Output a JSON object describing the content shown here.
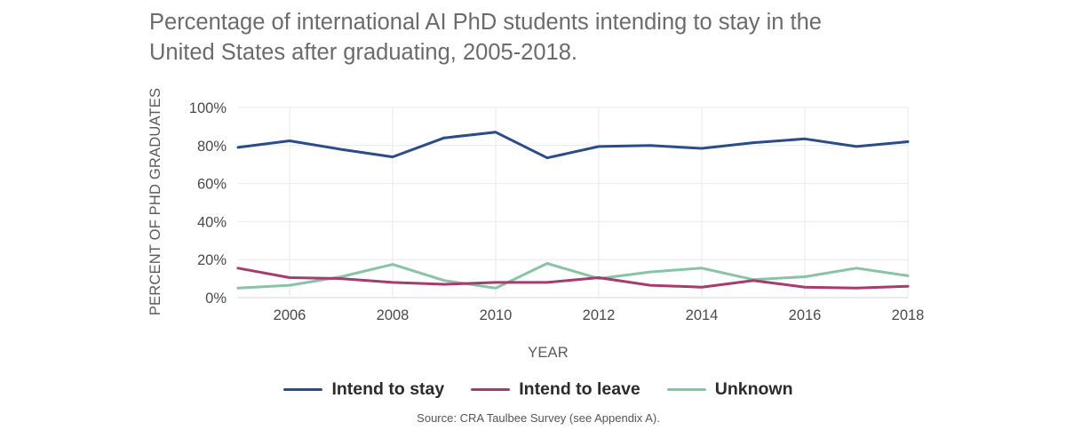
{
  "chart_data": {
    "type": "line",
    "title_lines": [
      "Percentage of international AI PhD students intending to stay in the",
      "United States after graduating, 2005-2018."
    ],
    "xlabel": "YEAR",
    "ylabel": "PERCENT OF PHD GRADUATES",
    "x": [
      2005,
      2006,
      2007,
      2008,
      2009,
      2010,
      2011,
      2012,
      2013,
      2014,
      2015,
      2016,
      2017,
      2018
    ],
    "x_ticks": [
      2006,
      2008,
      2010,
      2012,
      2014,
      2016,
      2018
    ],
    "y_ticks": [
      "100%",
      "80%",
      "60%",
      "40%",
      "20%",
      "0%"
    ],
    "ylim": [
      0,
      100
    ],
    "grid": true,
    "legend_position": "bottom",
    "series": [
      {
        "name": "Intend to stay",
        "color": "#2b4c8a",
        "values": [
          79,
          82.5,
          78,
          74,
          84,
          87,
          73.5,
          79.5,
          80,
          78.5,
          81.5,
          83.5,
          79.5,
          82
        ]
      },
      {
        "name": "Intend to leave",
        "color": "#a73a6e",
        "values": [
          15.5,
          10.5,
          10,
          8,
          7,
          8,
          8,
          10.5,
          6.5,
          5.5,
          9,
          5.5,
          5,
          6
        ]
      },
      {
        "name": "Unknown",
        "color": "#87c4a4",
        "values": [
          5,
          6.5,
          11,
          17.5,
          9,
          5,
          18,
          10,
          13.5,
          15.5,
          9.5,
          11,
          15.5,
          11.5
        ]
      }
    ],
    "source": "Source: CRA Taulbee Survey (see Appendix A)."
  }
}
